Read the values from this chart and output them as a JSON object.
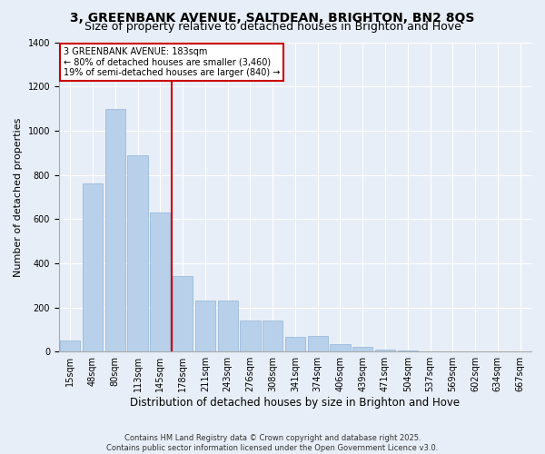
{
  "title": "3, GREENBANK AVENUE, SALTDEAN, BRIGHTON, BN2 8QS",
  "subtitle": "Size of property relative to detached houses in Brighton and Hove",
  "xlabel": "Distribution of detached houses by size in Brighton and Hove",
  "ylabel": "Number of detached properties",
  "categories": [
    "15sqm",
    "48sqm",
    "80sqm",
    "113sqm",
    "145sqm",
    "178sqm",
    "211sqm",
    "243sqm",
    "276sqm",
    "308sqm",
    "341sqm",
    "374sqm",
    "406sqm",
    "439sqm",
    "471sqm",
    "504sqm",
    "537sqm",
    "569sqm",
    "602sqm",
    "634sqm",
    "667sqm"
  ],
  "values": [
    50,
    760,
    1100,
    890,
    630,
    340,
    230,
    230,
    140,
    140,
    65,
    70,
    35,
    20,
    10,
    5,
    2,
    0,
    2,
    0,
    2
  ],
  "bar_color": "#b8d0ea",
  "bar_edge_color": "#90b4d8",
  "vline_color": "#cc0000",
  "vline_idx": 4.5,
  "annotation_text": "3 GREENBANK AVENUE: 183sqm\n← 80% of detached houses are smaller (3,460)\n19% of semi-detached houses are larger (840) →",
  "annotation_box_color": "#cc0000",
  "background_color": "#e8eef7",
  "ylim": [
    0,
    1400
  ],
  "yticks": [
    0,
    200,
    400,
    600,
    800,
    1000,
    1200,
    1400
  ],
  "footer": "Contains HM Land Registry data © Crown copyright and database right 2025.\nContains public sector information licensed under the Open Government Licence v3.0.",
  "title_fontsize": 10,
  "subtitle_fontsize": 9,
  "xlabel_fontsize": 8.5,
  "ylabel_fontsize": 8,
  "tick_fontsize": 7,
  "annotation_fontsize": 7,
  "footer_fontsize": 6
}
